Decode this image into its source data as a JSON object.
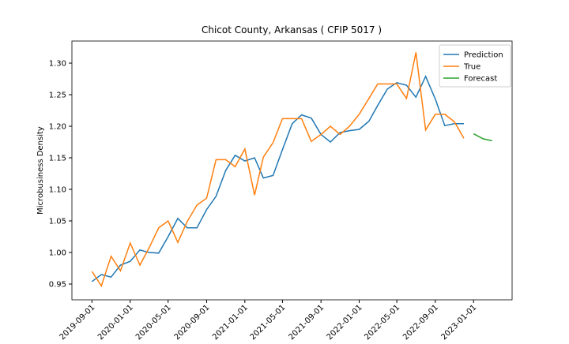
{
  "chart_data": {
    "type": "line",
    "title": "Chicot County, Arkansas ( CFIP 5017 )",
    "y_label": "Microbusiness Density",
    "x": [
      "2019-09-01",
      "2019-10-01",
      "2019-11-01",
      "2019-12-01",
      "2020-01-01",
      "2020-02-01",
      "2020-03-01",
      "2020-04-01",
      "2020-05-01",
      "2020-06-01",
      "2020-07-01",
      "2020-08-01",
      "2020-09-01",
      "2020-10-01",
      "2020-11-01",
      "2020-12-01",
      "2021-01-01",
      "2021-02-01",
      "2021-03-01",
      "2021-04-01",
      "2021-05-01",
      "2021-06-01",
      "2021-07-01",
      "2021-08-01",
      "2021-09-01",
      "2021-10-01",
      "2021-11-01",
      "2021-12-01",
      "2022-01-01",
      "2022-02-01",
      "2022-03-01",
      "2022-04-01",
      "2022-05-01",
      "2022-06-01",
      "2022-07-01",
      "2022-08-01",
      "2022-09-01",
      "2022-10-01",
      "2022-11-01",
      "2022-12-01",
      "2023-01-01",
      "2023-02-01",
      "2023-03-01"
    ],
    "series": [
      {
        "name": "Prediction",
        "color": "#1f77b4",
        "values": [
          0.954,
          0.965,
          0.961,
          0.98,
          0.986,
          1.004,
          1.0,
          0.999,
          1.025,
          1.054,
          1.039,
          1.039,
          1.068,
          1.089,
          1.13,
          1.154,
          1.145,
          1.15,
          1.118,
          1.122,
          1.163,
          1.204,
          1.218,
          1.213,
          1.187,
          1.175,
          1.19,
          1.193,
          1.195,
          1.208,
          1.233,
          1.259,
          1.269,
          1.265,
          1.246,
          1.279,
          1.243,
          1.201,
          1.204,
          1.204,
          null,
          null,
          null
        ]
      },
      {
        "name": "True",
        "color": "#ff7f0e",
        "values": [
          0.97,
          0.947,
          0.994,
          0.971,
          1.015,
          0.98,
          1.007,
          1.039,
          1.05,
          1.016,
          1.049,
          1.075,
          1.086,
          1.147,
          1.147,
          1.136,
          1.164,
          1.091,
          1.151,
          1.174,
          1.212,
          1.212,
          1.212,
          1.176,
          1.187,
          1.2,
          1.187,
          1.2,
          1.219,
          1.244,
          1.267,
          1.267,
          1.267,
          1.244,
          1.317,
          1.194,
          1.219,
          1.219,
          1.207,
          1.181,
          null,
          null,
          null
        ]
      },
      {
        "name": "Forecast",
        "color": "#2ca02c",
        "values": [
          null,
          null,
          null,
          null,
          null,
          null,
          null,
          null,
          null,
          null,
          null,
          null,
          null,
          null,
          null,
          null,
          null,
          null,
          null,
          null,
          null,
          null,
          null,
          null,
          null,
          null,
          null,
          null,
          null,
          null,
          null,
          null,
          null,
          null,
          null,
          null,
          null,
          null,
          null,
          null,
          1.188,
          1.18,
          1.177
        ]
      }
    ],
    "xlim": [
      "2019-06-29",
      "2023-05-04"
    ],
    "xticks": [
      "2019-09-01",
      "2020-01-01",
      "2020-05-01",
      "2020-09-01",
      "2021-01-01",
      "2021-05-01",
      "2021-09-01",
      "2022-01-01",
      "2022-05-01",
      "2022-09-01",
      "2023-01-01"
    ],
    "ylim": [
      0.925,
      1.335
    ],
    "yticks": [
      0.95,
      {
        "value": 1.0,
        "label": "1.00"
      },
      1.05,
      {
        "value": 1.1,
        "label": "1.10"
      },
      1.15,
      {
        "value": 1.2,
        "label": "1.20"
      },
      1.25,
      {
        "value": 1.3,
        "label": "1.30"
      }
    ],
    "legend": "upper-right"
  }
}
